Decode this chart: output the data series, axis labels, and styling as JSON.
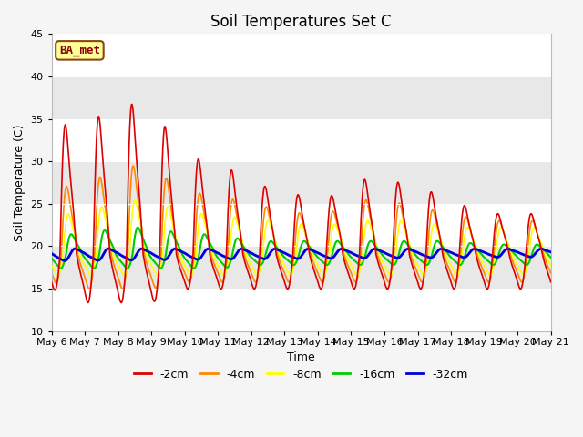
{
  "title": "Soil Temperatures Set C",
  "xlabel": "Time",
  "ylabel": "Soil Temperature (C)",
  "ylim": [
    10,
    45
  ],
  "x_tick_labels": [
    "May 6",
    "May 7",
    "May 8",
    "May 9",
    "May 10",
    "May 11",
    "May 12",
    "May 13",
    "May 14",
    "May 15",
    "May 16",
    "May 17",
    "May 18",
    "May 19",
    "May 20",
    "May 21"
  ],
  "annotation_text": "BA_met",
  "annotation_bg": "#ffff99",
  "annotation_border": "#8B4513",
  "annotation_text_color": "#8B0000",
  "colors": {
    "-2cm": "#dd0000",
    "-4cm": "#ff8800",
    "-8cm": "#ffff00",
    "-16cm": "#00cc00",
    "-32cm": "#0000dd"
  },
  "line_widths": {
    "-2cm": 1.2,
    "-4cm": 1.2,
    "-8cm": 1.2,
    "-16cm": 1.5,
    "-32cm": 2.0
  },
  "plot_bg": "#e8e8e8",
  "band_color": "#d8d8d8",
  "grid_color": "#ffffff",
  "title_fontsize": 12,
  "axis_label_fontsize": 9,
  "tick_fontsize": 8
}
